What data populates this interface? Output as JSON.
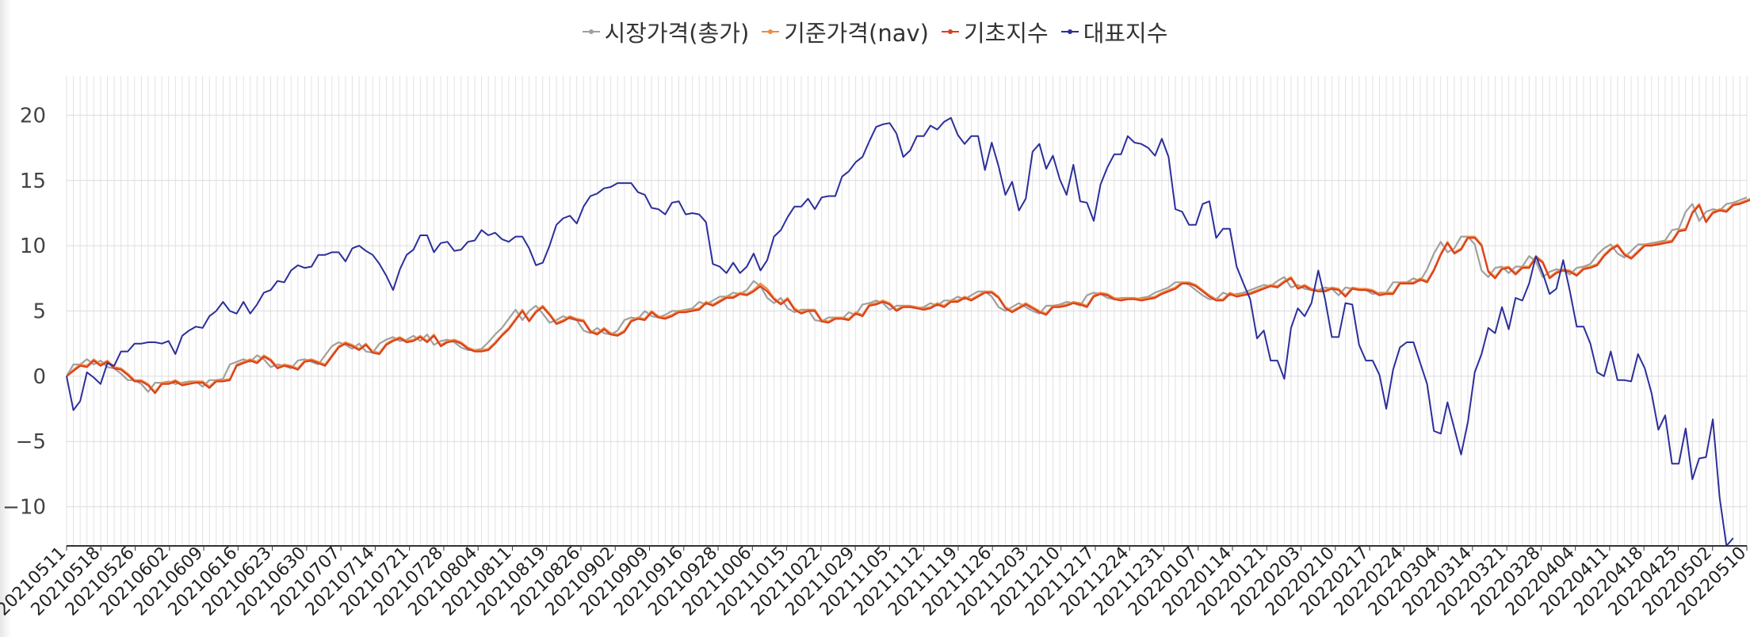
{
  "chart_data": {
    "type": "line",
    "title": "",
    "xlabel": "",
    "ylabel": "",
    "ylim": [
      -13,
      23
    ],
    "y_ticks": [
      "20",
      "15",
      "10",
      "5",
      "0",
      "−5",
      "−10"
    ],
    "y_tick_values": [
      20,
      15,
      10,
      5,
      0,
      -5,
      -10
    ],
    "x_tick_labels": [
      "20210511",
      "20210518",
      "20210526",
      "20210602",
      "20210609",
      "20210616",
      "20210623",
      "20210630",
      "20210707",
      "20210714",
      "20210721",
      "20210728",
      "20210804",
      "20210811",
      "20210819",
      "20210826",
      "20210902",
      "20210909",
      "20210916",
      "20210928",
      "20211006",
      "20211015",
      "20211022",
      "20211029",
      "20211105",
      "20211112",
      "20211119",
      "20211126",
      "20211203",
      "20211210",
      "20211217",
      "20211224",
      "20211231",
      "20220107",
      "20220114",
      "20220121",
      "20220203",
      "20220210",
      "20220217",
      "20220224",
      "20220304",
      "20220314",
      "20220321",
      "20220328",
      "20220404",
      "20220411",
      "20220418",
      "20220425",
      "20220502",
      "20220510"
    ],
    "grid": true,
    "legend_position": "top-center",
    "series": [
      {
        "name": "시장가격(총가)",
        "color": "#a0a0a0",
        "values": [
          0,
          0.9,
          0.9,
          1.3,
          0.9,
          1.2,
          0.7,
          0.6,
          0.2,
          -0.3,
          -0.3,
          -0.6,
          -1.2,
          -0.5,
          -0.5,
          -0.4,
          -0.6,
          -0.5,
          -0.4,
          -0.4,
          -0.8,
          -0.3,
          -0.3,
          -0.2,
          0.9,
          1.1,
          1.3,
          1.1,
          1.6,
          1.3,
          0.7,
          0.9,
          0.8,
          0.6,
          1.2,
          1.3,
          1.1,
          0.9,
          1.6,
          2.3,
          2.6,
          2.4,
          2.1,
          2.5,
          1.9,
          1.8,
          2.5,
          2.8,
          3.0,
          2.7,
          2.8,
          3.1,
          2.7,
          3.2,
          2.4,
          2.7,
          2.8,
          2.6,
          2.2,
          2.0,
          2.0,
          2.1,
          2.6,
          3.2,
          3.7,
          4.4,
          5.1,
          4.3,
          5.0,
          5.4,
          4.8,
          4.1,
          4.3,
          4.6,
          4.4,
          4.3,
          3.5,
          3.3,
          3.7,
          3.3,
          3.2,
          3.5,
          4.3,
          4.5,
          4.4,
          5.0,
          4.6,
          4.5,
          4.7,
          5.0,
          5.0,
          5.1,
          5.2,
          5.7,
          5.5,
          5.8,
          6.1,
          6.1,
          6.4,
          6.3,
          6.6,
          7.3,
          6.9,
          6.0,
          5.6,
          6.0,
          5.2,
          4.9,
          5.1,
          5.1,
          4.3,
          4.2,
          4.5,
          4.5,
          4.4,
          4.9,
          4.7,
          5.5,
          5.6,
          5.8,
          5.6,
          5.1,
          5.4,
          5.4,
          5.3,
          5.2,
          5.3,
          5.6,
          5.4,
          5.8,
          5.8,
          6.1,
          5.9,
          6.2,
          6.5,
          6.5,
          6.1,
          5.3,
          5.0,
          5.3,
          5.6,
          5.3,
          5.0,
          4.8,
          5.4,
          5.4,
          5.5,
          5.7,
          5.6,
          5.4,
          6.2,
          6.4,
          6.3,
          6.0,
          5.9,
          6.0,
          6.0,
          5.9,
          6.0,
          6.1,
          6.4,
          6.6,
          6.8,
          7.2,
          7.2,
          7.0,
          6.6,
          6.2,
          5.9,
          5.9,
          6.4,
          6.2,
          6.3,
          6.4,
          6.6,
          6.8,
          7.0,
          6.9,
          7.3,
          7.6,
          6.8,
          7.0,
          6.7,
          6.6,
          6.6,
          6.8,
          6.7,
          6.2,
          6.8,
          6.7,
          6.7,
          6.6,
          6.3,
          6.4,
          6.4,
          7.2,
          7.2,
          7.2,
          7.5,
          7.3,
          8.2,
          9.4,
          10.3,
          9.5,
          9.8,
          10.7,
          10.7,
          10.1,
          8.1,
          7.6,
          8.3,
          8.4,
          7.9,
          8.4,
          8.4,
          9.2,
          8.8,
          7.6,
          8.0,
          8.2,
          8.1,
          7.8,
          8.3,
          8.4,
          8.6,
          9.3,
          9.8,
          10.1,
          9.4,
          9.1,
          9.6,
          10.1,
          10.1,
          10.2,
          10.3,
          10.4,
          11.2,
          11.3,
          12.6,
          13.2,
          11.9,
          12.6,
          12.8,
          12.7,
          13.2,
          13.3,
          13.5,
          13.7
        ]
      },
      {
        "name": "기준가격(nav)",
        "color": "#f08a3c",
        "values": [
          0,
          0.5,
          0.9,
          0.8,
          1.3,
          0.9,
          1.2,
          0.7,
          0.6,
          0.2,
          -0.3,
          -0.3,
          -0.6,
          -1.2,
          -0.5,
          -0.5,
          -0.3,
          -0.6,
          -0.5,
          -0.4,
          -0.4,
          -0.8,
          -0.3,
          -0.3,
          -0.2,
          0.9,
          1.1,
          1.3,
          1.1,
          1.6,
          1.3,
          0.7,
          0.9,
          0.8,
          0.6,
          1.2,
          1.3,
          1.1,
          0.9,
          1.6,
          2.3,
          2.6,
          2.4,
          2.1,
          2.5,
          1.9,
          1.8,
          2.5,
          2.8,
          3.0,
          2.7,
          2.8,
          3.1,
          2.7,
          3.2,
          2.4,
          2.7,
          2.8,
          2.6,
          2.2,
          2.0,
          2.0,
          2.1,
          2.6,
          3.2,
          3.7,
          4.4,
          5.1,
          4.3,
          5.0,
          5.4,
          4.8,
          4.1,
          4.3,
          4.6,
          4.4,
          4.3,
          3.5,
          3.3,
          3.7,
          3.3,
          3.2,
          3.5,
          4.3,
          4.5,
          4.4,
          5.0,
          4.6,
          4.5,
          4.7,
          5.0,
          5.0,
          5.1,
          5.2,
          5.7,
          5.5,
          5.8,
          6.1,
          6.1,
          6.4,
          6.3,
          6.6,
          7.1,
          6.7,
          6.0,
          5.6,
          6.0,
          5.2,
          4.9,
          5.1,
          5.1,
          4.3,
          4.2,
          4.5,
          4.5,
          4.4,
          4.9,
          4.7,
          5.5,
          5.6,
          5.8,
          5.6,
          5.1,
          5.4,
          5.4,
          5.3,
          5.2,
          5.3,
          5.6,
          5.4,
          5.8,
          5.8,
          6.1,
          5.9,
          6.2,
          6.5,
          6.5,
          6.1,
          5.3,
          5.0,
          5.3,
          5.6,
          5.3,
          5.0,
          4.8,
          5.4,
          5.4,
          5.5,
          5.7,
          5.6,
          5.4,
          6.2,
          6.4,
          6.3,
          6.0,
          5.9,
          6.0,
          6.0,
          5.9,
          6.0,
          6.1,
          6.4,
          6.6,
          6.8,
          7.2,
          7.2,
          7.0,
          6.6,
          6.2,
          5.9,
          5.9,
          6.4,
          6.2,
          6.3,
          6.4,
          6.6,
          6.8,
          7.0,
          6.9,
          7.3,
          7.6,
          6.8,
          7.0,
          6.7,
          6.6,
          6.6,
          6.8,
          6.7,
          6.2,
          6.8,
          6.7,
          6.7,
          6.6,
          6.3,
          6.4,
          6.4,
          7.2,
          7.2,
          7.2,
          7.5,
          7.3,
          8.2,
          9.4,
          10.3,
          9.5,
          9.8,
          10.7,
          10.7,
          10.1,
          8.1,
          7.6,
          8.3,
          8.4,
          7.9,
          8.4,
          8.4,
          9.2,
          8.8,
          7.6,
          8.0,
          8.2,
          8.1,
          7.8,
          8.3,
          8.4,
          8.6,
          9.3,
          9.8,
          10.1,
          9.4,
          9.1,
          9.6,
          10.1,
          10.1,
          10.2,
          10.3,
          10.4,
          11.2,
          11.3,
          12.6,
          13.2,
          11.9,
          12.6,
          12.8,
          12.7,
          13.2,
          13.3,
          13.5,
          13.7
        ]
      },
      {
        "name": "기초지수",
        "color": "#d8401f",
        "values": [
          0,
          0.4,
          0.8,
          0.7,
          1.2,
          0.8,
          1.1,
          0.6,
          0.5,
          0.1,
          -0.4,
          -0.4,
          -0.7,
          -1.3,
          -0.6,
          -0.6,
          -0.4,
          -0.7,
          -0.6,
          -0.5,
          -0.5,
          -0.9,
          -0.4,
          -0.4,
          -0.3,
          0.8,
          1.0,
          1.2,
          1.0,
          1.5,
          1.2,
          0.6,
          0.8,
          0.7,
          0.5,
          1.1,
          1.2,
          1.0,
          0.8,
          1.5,
          2.2,
          2.5,
          2.3,
          2.0,
          2.4,
          1.8,
          1.7,
          2.4,
          2.7,
          2.9,
          2.6,
          2.7,
          3.0,
          2.6,
          3.1,
          2.3,
          2.6,
          2.7,
          2.5,
          2.1,
          1.9,
          1.9,
          2.0,
          2.5,
          3.1,
          3.6,
          4.3,
          5.0,
          4.2,
          4.9,
          5.3,
          4.7,
          4.0,
          4.2,
          4.5,
          4.3,
          4.2,
          3.4,
          3.2,
          3.6,
          3.2,
          3.1,
          3.4,
          4.2,
          4.4,
          4.3,
          4.9,
          4.5,
          4.4,
          4.6,
          4.9,
          4.9,
          5.0,
          5.1,
          5.6,
          5.4,
          5.7,
          6.0,
          6.0,
          6.3,
          6.2,
          6.5,
          6.9,
          6.5,
          5.9,
          5.5,
          5.9,
          5.1,
          4.8,
          5.0,
          5.0,
          4.2,
          4.1,
          4.4,
          4.4,
          4.3,
          4.8,
          4.6,
          5.4,
          5.5,
          5.7,
          5.5,
          5.0,
          5.3,
          5.3,
          5.2,
          5.1,
          5.2,
          5.5,
          5.3,
          5.7,
          5.7,
          6.0,
          5.8,
          6.1,
          6.4,
          6.4,
          6.0,
          5.2,
          4.9,
          5.2,
          5.5,
          5.2,
          4.9,
          4.7,
          5.3,
          5.3,
          5.4,
          5.6,
          5.5,
          5.3,
          6.1,
          6.3,
          6.2,
          5.9,
          5.8,
          5.9,
          5.9,
          5.8,
          5.9,
          6.0,
          6.3,
          6.5,
          6.7,
          7.1,
          7.1,
          6.9,
          6.5,
          6.1,
          5.8,
          5.8,
          6.3,
          6.1,
          6.2,
          6.3,
          6.5,
          6.7,
          6.9,
          6.8,
          7.2,
          7.5,
          6.7,
          6.9,
          6.6,
          6.5,
          6.5,
          6.7,
          6.6,
          6.1,
          6.7,
          6.6,
          6.6,
          6.5,
          6.2,
          6.3,
          6.3,
          7.1,
          7.1,
          7.1,
          7.4,
          7.2,
          8.1,
          9.3,
          10.2,
          9.4,
          9.7,
          10.6,
          10.6,
          10.0,
          8.0,
          7.5,
          8.2,
          8.3,
          7.8,
          8.3,
          8.3,
          9.1,
          8.7,
          7.5,
          7.9,
          8.1,
          8.0,
          7.7,
          8.2,
          8.3,
          8.5,
          9.2,
          9.7,
          10.0,
          9.3,
          9.0,
          9.5,
          10.0,
          10.0,
          10.1,
          10.2,
          10.3,
          11.1,
          11.2,
          12.5,
          13.1,
          11.8,
          12.5,
          12.7,
          12.6,
          13.1,
          13.2,
          13.4,
          13.6
        ]
      },
      {
        "name": "대표지수",
        "color": "#2b2f9a",
        "values": [
          0,
          -2.6,
          -1.9,
          0.3,
          -0.1,
          -0.6,
          1.0,
          0.8,
          1.9,
          1.9,
          2.5,
          2.5,
          2.6,
          2.6,
          2.5,
          2.7,
          1.7,
          3.1,
          3.5,
          3.8,
          3.7,
          4.6,
          5.0,
          5.7,
          5.0,
          4.8,
          5.7,
          4.8,
          5.5,
          6.4,
          6.6,
          7.3,
          7.2,
          8.1,
          8.5,
          8.3,
          8.4,
          9.3,
          9.3,
          9.5,
          9.5,
          8.8,
          9.8,
          10.0,
          9.6,
          9.3,
          8.6,
          7.7,
          6.6,
          8.2,
          9.3,
          9.7,
          10.8,
          10.8,
          9.5,
          10.2,
          10.3,
          9.6,
          9.7,
          10.3,
          10.4,
          11.2,
          10.8,
          11.0,
          10.5,
          10.3,
          10.7,
          10.7,
          9.8,
          8.5,
          8.7,
          10.0,
          11.6,
          12.1,
          12.3,
          11.7,
          13.0,
          13.8,
          14.0,
          14.4,
          14.5,
          14.8,
          14.8,
          14.8,
          14.1,
          13.9,
          12.9,
          12.8,
          12.4,
          13.3,
          13.4,
          12.4,
          12.5,
          12.4,
          11.8,
          8.6,
          8.4,
          7.9,
          8.7,
          7.9,
          8.4,
          9.4,
          8.1,
          8.9,
          10.7,
          11.2,
          12.2,
          13.0,
          13.0,
          13.6,
          12.8,
          13.7,
          13.8,
          13.8,
          15.3,
          15.7,
          16.4,
          16.8,
          18.0,
          19.1,
          19.3,
          19.4,
          18.6,
          16.8,
          17.3,
          18.4,
          18.4,
          19.2,
          18.9,
          19.5,
          19.8,
          18.5,
          17.8,
          18.4,
          18.4,
          15.8,
          17.9,
          16.1,
          13.9,
          14.9,
          12.7,
          13.6,
          17.2,
          17.8,
          15.9,
          16.9,
          15.1,
          13.9,
          16.2,
          13.4,
          13.3,
          11.9,
          14.7,
          16.0,
          17.0,
          17.0,
          18.4,
          17.9,
          17.8,
          17.5,
          16.9,
          18.2,
          16.8,
          12.8,
          12.6,
          11.6,
          11.6,
          13.2,
          13.4,
          10.6,
          11.3,
          11.3,
          8.4,
          7.1,
          5.9,
          2.9,
          3.5,
          1.2,
          1.2,
          -0.2,
          3.7,
          5.2,
          4.6,
          5.6,
          8.1,
          5.9,
          3.0,
          3.0,
          5.6,
          5.5,
          2.4,
          1.2,
          1.2,
          0.1,
          -2.5,
          0.5,
          2.2,
          2.6,
          2.6,
          1.0,
          -0.6,
          -4.2,
          -4.4,
          -2.0,
          -4.0,
          -6.0,
          -3.5,
          0.3,
          1.7,
          3.7,
          3.3,
          5.3,
          3.6,
          6.0,
          5.8,
          7.1,
          9.2,
          7.9,
          6.3,
          6.7,
          8.9,
          6.5,
          3.8,
          3.8,
          2.5,
          0.3,
          0,
          1.9,
          -0.3,
          -0.3,
          -0.4,
          1.7,
          0.6,
          -1.3,
          -4.1,
          -3.0,
          -6.7,
          -6.7,
          -4.0,
          -7.9,
          -6.3,
          -6.2,
          -3.3,
          -9.3,
          -13.0,
          -12.4
        ]
      }
    ]
  },
  "legend": {
    "items": [
      {
        "label": "시장가격(총가)",
        "color": "#a0a0a0"
      },
      {
        "label": "기준가격(nav)",
        "color": "#f08a3c"
      },
      {
        "label": "기초지수",
        "color": "#d8401f"
      },
      {
        "label": "대표지수",
        "color": "#2b2f9a"
      }
    ]
  }
}
